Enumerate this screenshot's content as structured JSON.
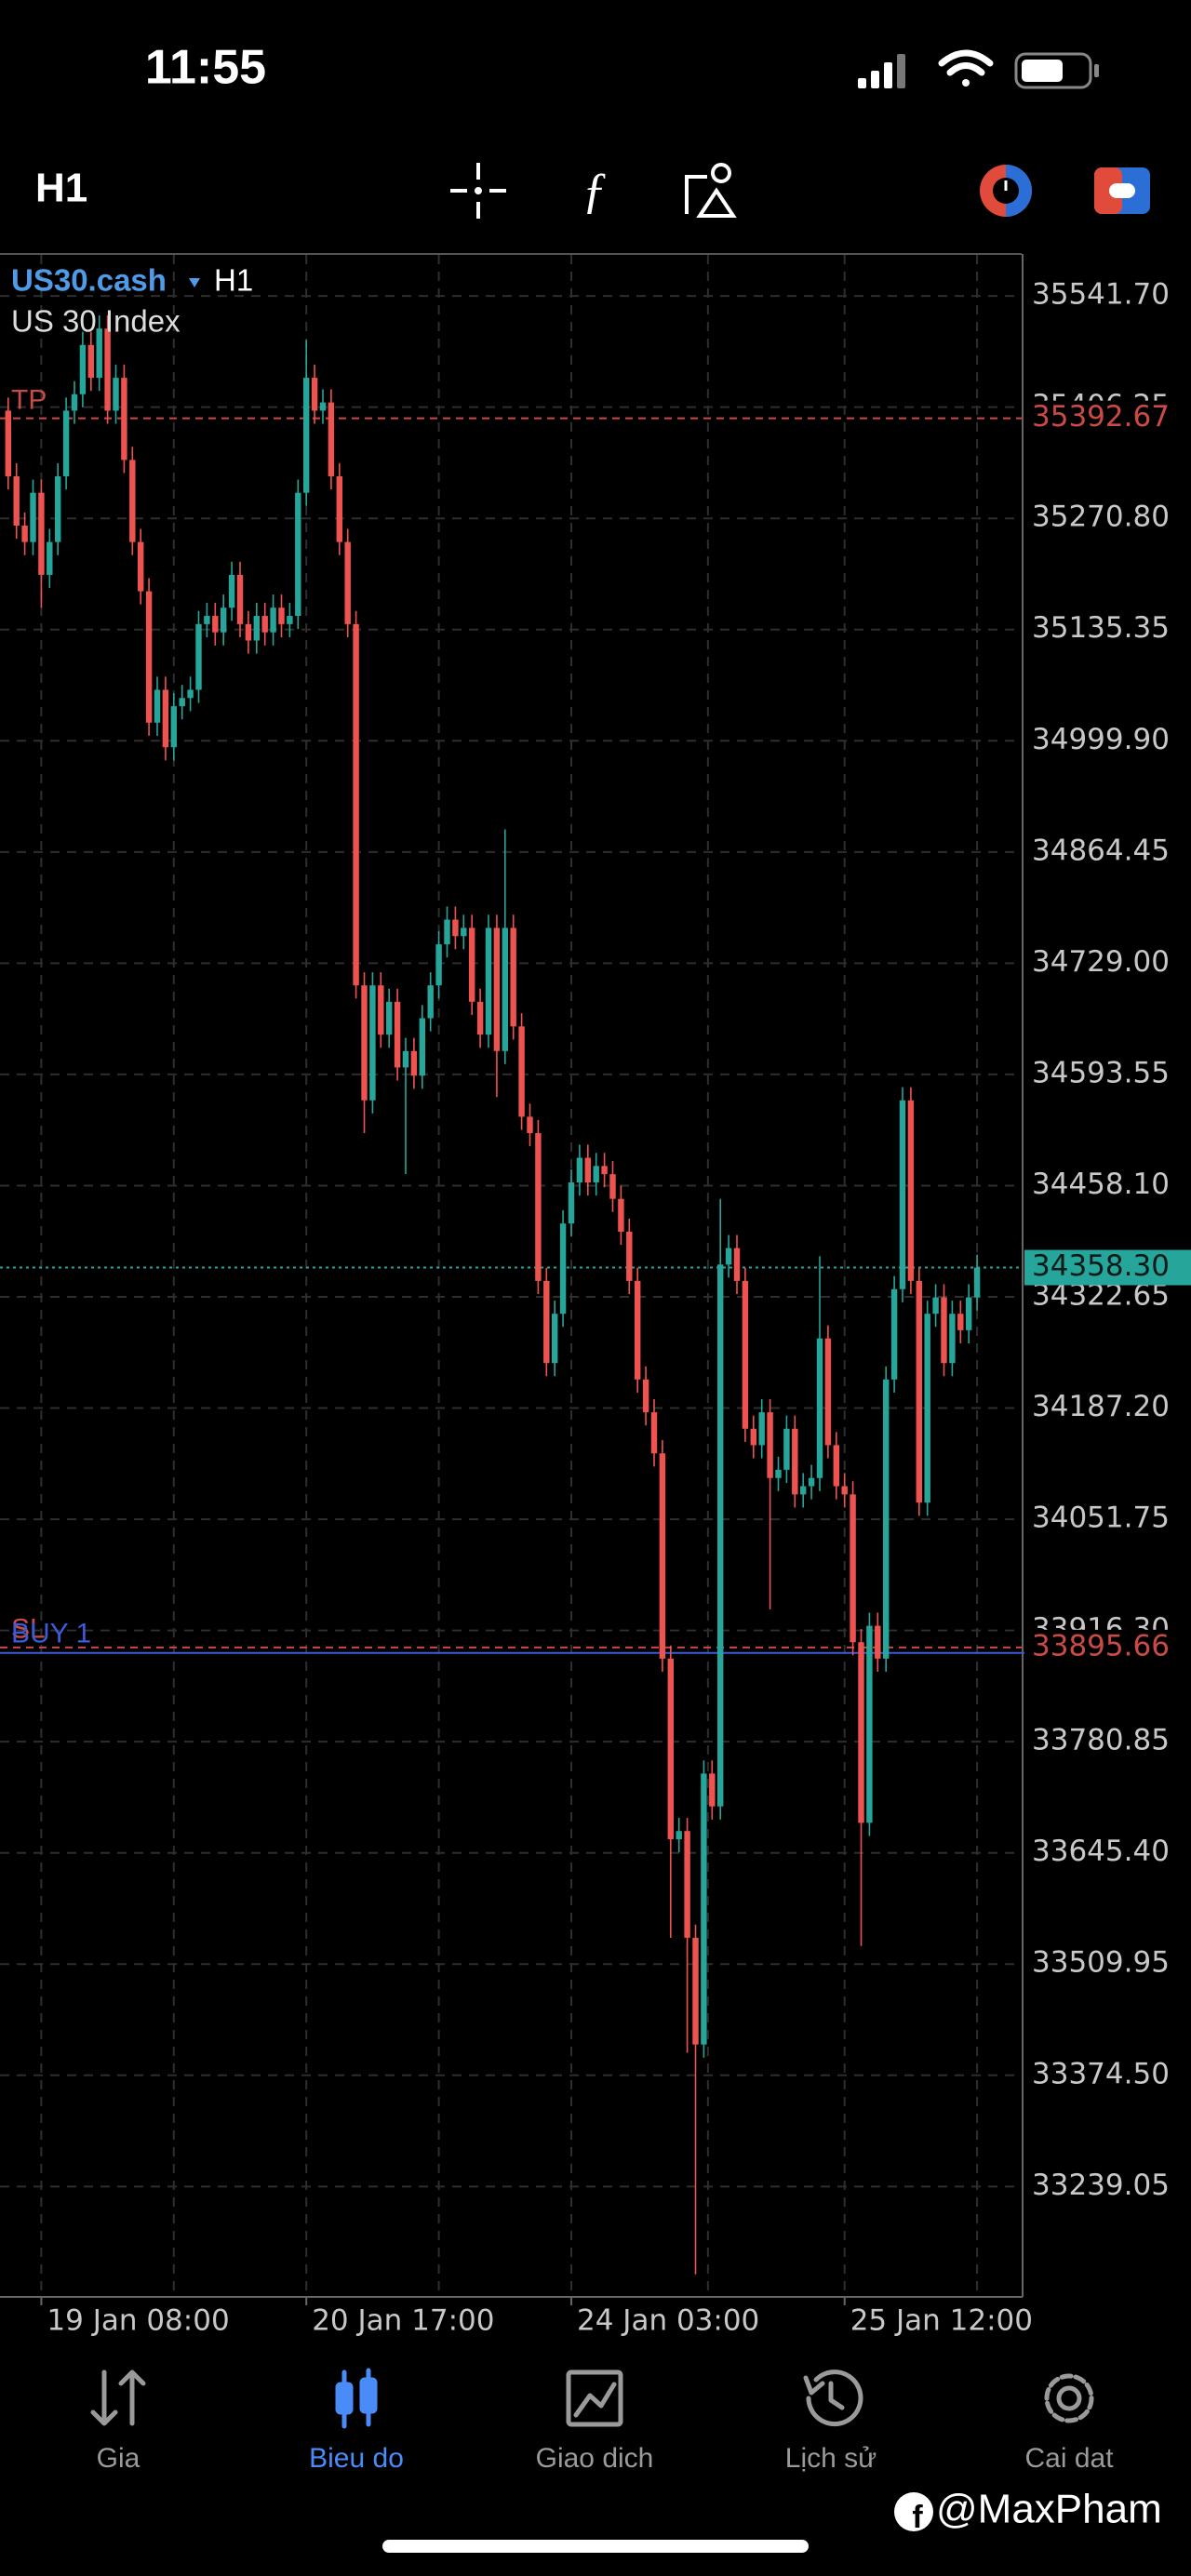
{
  "status_bar": {
    "time": "11:55"
  },
  "toolbar": {
    "timeframe": "H1"
  },
  "chart_data": {
    "type": "candlestick",
    "symbol": "US30.cash",
    "symbol_timeframe": "H1",
    "description": "US 30 Index",
    "categories": [
      null,
      null,
      null,
      null,
      "19 Jan 08:00",
      null,
      null,
      null,
      null,
      null,
      null,
      null,
      null,
      null,
      null,
      null,
      null,
      null,
      null,
      null,
      null,
      null,
      null,
      null,
      null,
      null,
      null,
      null,
      null,
      null,
      null,
      null,
      null,
      null,
      null,
      null,
      "20 Jan 17:00",
      null,
      null,
      null,
      null,
      null,
      null,
      null,
      null,
      null,
      null,
      null,
      null,
      null,
      null,
      null,
      null,
      null,
      null,
      null,
      null,
      null,
      null,
      null,
      null,
      null,
      null,
      null,
      null,
      null,
      null,
      null,
      "24 Jan 03:00",
      null,
      null,
      null,
      null,
      null,
      null,
      null,
      null,
      null,
      null,
      null,
      null,
      null,
      null,
      null,
      null,
      null,
      null,
      null,
      null,
      null,
      null,
      null,
      null,
      null,
      null,
      null,
      null,
      null,
      null,
      null,
      null,
      "25 Jan 12:00",
      null,
      null,
      null,
      null,
      null,
      null,
      null,
      null,
      null,
      null,
      null,
      null,
      null,
      null,
      null,
      null
    ],
    "open": [
      35402,
      35322,
      35262,
      35242,
      35302,
      35202,
      35242,
      35322,
      35402,
      35422,
      35482,
      35442,
      35502,
      35402,
      35442,
      35342,
      35242,
      35182,
      35022,
      35062,
      34992,
      35042,
      35052,
      35062,
      35142,
      35152,
      35132,
      35162,
      35202,
      35142,
      35122,
      35152,
      35132,
      35162,
      35142,
      35152,
      35302,
      35442,
      35402,
      35412,
      35322,
      35242,
      35142,
      34702,
      34562,
      34702,
      34642,
      34682,
      34602,
      34622,
      34592,
      34662,
      34702,
      34752,
      34782,
      34762,
      34772,
      34682,
      34642,
      34772,
      34622,
      34772,
      34652,
      34542,
      34522,
      34342,
      34242,
      34302,
      34412,
      34462,
      34492,
      34462,
      34482,
      34472,
      34442,
      34402,
      34342,
      34222,
      34182,
      34132,
      33882,
      33662,
      33672,
      33542,
      33412,
      33742,
      33702,
      34362,
      34382,
      34342,
      34162,
      34142,
      34182,
      34102,
      34112,
      34162,
      34082,
      34092,
      34102,
      34272,
      34142,
      34092,
      34082,
      33902,
      33682,
      33922,
      33882,
      34222,
      34332,
      34562,
      34342,
      34072,
      34302,
      34322,
      34242,
      34302,
      34282,
      34322
    ],
    "high": [
      35418,
      35338,
      35278,
      35318,
      35318,
      35258,
      35338,
      35418,
      35438,
      35498,
      35498,
      35518,
      35518,
      35458,
      35458,
      35358,
      35258,
      35198,
      35078,
      35078,
      35058,
      35068,
      35078,
      35158,
      35168,
      35168,
      35178,
      35218,
      35218,
      35158,
      35168,
      35168,
      35178,
      35178,
      35168,
      35318,
      35488,
      35458,
      35428,
      35428,
      35338,
      35258,
      35158,
      34718,
      34718,
      34718,
      34698,
      34698,
      34638,
      34638,
      34678,
      34718,
      34768,
      34798,
      34798,
      34788,
      34788,
      34698,
      34788,
      34788,
      34892,
      34788,
      34668,
      34558,
      34538,
      34358,
      34318,
      34428,
      34478,
      34508,
      34508,
      34498,
      34498,
      34488,
      34458,
      34418,
      34358,
      34238,
      34198,
      34148,
      33898,
      33688,
      33688,
      33558,
      33758,
      33758,
      34442,
      34398,
      34398,
      34358,
      34178,
      34198,
      34198,
      34128,
      34178,
      34178,
      34108,
      34118,
      34372,
      34288,
      34158,
      34108,
      34098,
      33918,
      33938,
      33938,
      34238,
      34348,
      34578,
      34578,
      34358,
      34318,
      34338,
      34338,
      34318,
      34318,
      34338,
      34374
    ],
    "low": [
      35306,
      35246,
      35226,
      35226,
      35162,
      35186,
      35226,
      35306,
      35386,
      35406,
      35426,
      35426,
      35386,
      35386,
      35326,
      35226,
      35166,
      35006,
      35006,
      34976,
      34976,
      35026,
      35036,
      35046,
      35126,
      35116,
      35116,
      35146,
      35126,
      35106,
      35106,
      35116,
      35116,
      35126,
      35126,
      35136,
      35286,
      35386,
      35386,
      35306,
      35226,
      35126,
      34686,
      34522,
      34546,
      34626,
      34626,
      34586,
      34472,
      34576,
      34576,
      34646,
      34686,
      34736,
      34746,
      34746,
      34666,
      34626,
      34626,
      34566,
      34606,
      34636,
      34526,
      34506,
      34326,
      34226,
      34226,
      34286,
      34396,
      34446,
      34446,
      34446,
      34456,
      34426,
      34386,
      34326,
      34206,
      34166,
      34116,
      33866,
      33542,
      33646,
      33402,
      33132,
      33396,
      33686,
      33686,
      34346,
      34326,
      34146,
      34126,
      34126,
      33942,
      34086,
      34096,
      34066,
      34066,
      34076,
      34086,
      34126,
      34076,
      34066,
      33886,
      33532,
      33666,
      33866,
      33866,
      34206,
      34316,
      34326,
      34056,
      34056,
      34286,
      34226,
      34226,
      34266,
      34266,
      34306
    ],
    "close": [
      35322,
      35262,
      35242,
      35302,
      35202,
      35242,
      35322,
      35402,
      35422,
      35482,
      35442,
      35502,
      35402,
      35442,
      35342,
      35242,
      35182,
      35022,
      35062,
      34992,
      35042,
      35052,
      35062,
      35142,
      35152,
      35132,
      35162,
      35202,
      35142,
      35122,
      35152,
      35132,
      35162,
      35142,
      35152,
      35302,
      35442,
      35402,
      35412,
      35322,
      35242,
      35142,
      34702,
      34562,
      34702,
      34642,
      34682,
      34602,
      34622,
      34592,
      34662,
      34702,
      34752,
      34782,
      34762,
      34772,
      34682,
      34642,
      34772,
      34622,
      34772,
      34652,
      34542,
      34522,
      34342,
      34242,
      34302,
      34412,
      34462,
      34492,
      34462,
      34482,
      34472,
      34442,
      34402,
      34342,
      34222,
      34182,
      34132,
      33882,
      33662,
      33672,
      33542,
      33412,
      33742,
      33702,
      34362,
      34382,
      34342,
      34162,
      34142,
      34182,
      34102,
      34112,
      34162,
      34082,
      34092,
      34102,
      34272,
      34142,
      34092,
      34082,
      33902,
      33682,
      33922,
      33882,
      34222,
      34332,
      34562,
      34342,
      34072,
      34302,
      34322,
      34242,
      34302,
      34282,
      34322,
      34358.3
    ],
    "up_color": "#26a69a",
    "down_color": "#ef5350",
    "ylim": [
      33105.7,
      35591.7
    ],
    "yticks": [
      {
        "value": 35541.7,
        "label": "35541.70"
      },
      {
        "value": 35406.25,
        "label": "35406.25"
      },
      {
        "value": 35270.8,
        "label": "35270.80"
      },
      {
        "value": 35135.35,
        "label": "35135.35"
      },
      {
        "value": 34999.9,
        "label": "34999.90"
      },
      {
        "value": 34864.45,
        "label": "34864.45"
      },
      {
        "value": 34729,
        "label": "34729.00"
      },
      {
        "value": 34593.55,
        "label": "34593.55"
      },
      {
        "value": 34458.1,
        "label": "34458.10"
      },
      {
        "value": 34322.65,
        "label": "34322.65"
      },
      {
        "value": 34187.2,
        "label": "34187.20"
      },
      {
        "value": 34051.75,
        "label": "34051.75"
      },
      {
        "value": 33916.3,
        "label": "33916.30"
      },
      {
        "value": 33780.85,
        "label": "33780.85"
      },
      {
        "value": 33645.4,
        "label": "33645.40"
      },
      {
        "value": 33509.95,
        "label": "33509.95"
      },
      {
        "value": 33374.5,
        "label": "33374.50"
      },
      {
        "value": 33239.05,
        "label": "33239.05"
      }
    ],
    "grid": true,
    "levels": [
      {
        "name": "TP",
        "value": 35392.67,
        "color": "#c94a46"
      },
      {
        "name": "SL",
        "value": 33895.66,
        "color": "#c94a46"
      }
    ],
    "position": {
      "name": "BUY 1",
      "value": 33889,
      "color": "#3b5bdb"
    },
    "current_price": {
      "value": 34358.3,
      "label": "34358.30",
      "color": "#26a69a"
    }
  },
  "nav": {
    "items": [
      {
        "label": "Gia",
        "active": false
      },
      {
        "label": "Bieu do",
        "active": true
      },
      {
        "label": "Giao dich",
        "active": false
      },
      {
        "label": "Lịch sử",
        "active": false
      },
      {
        "label": "Cai dat",
        "active": false
      }
    ]
  },
  "watermark": "@MaxPham"
}
